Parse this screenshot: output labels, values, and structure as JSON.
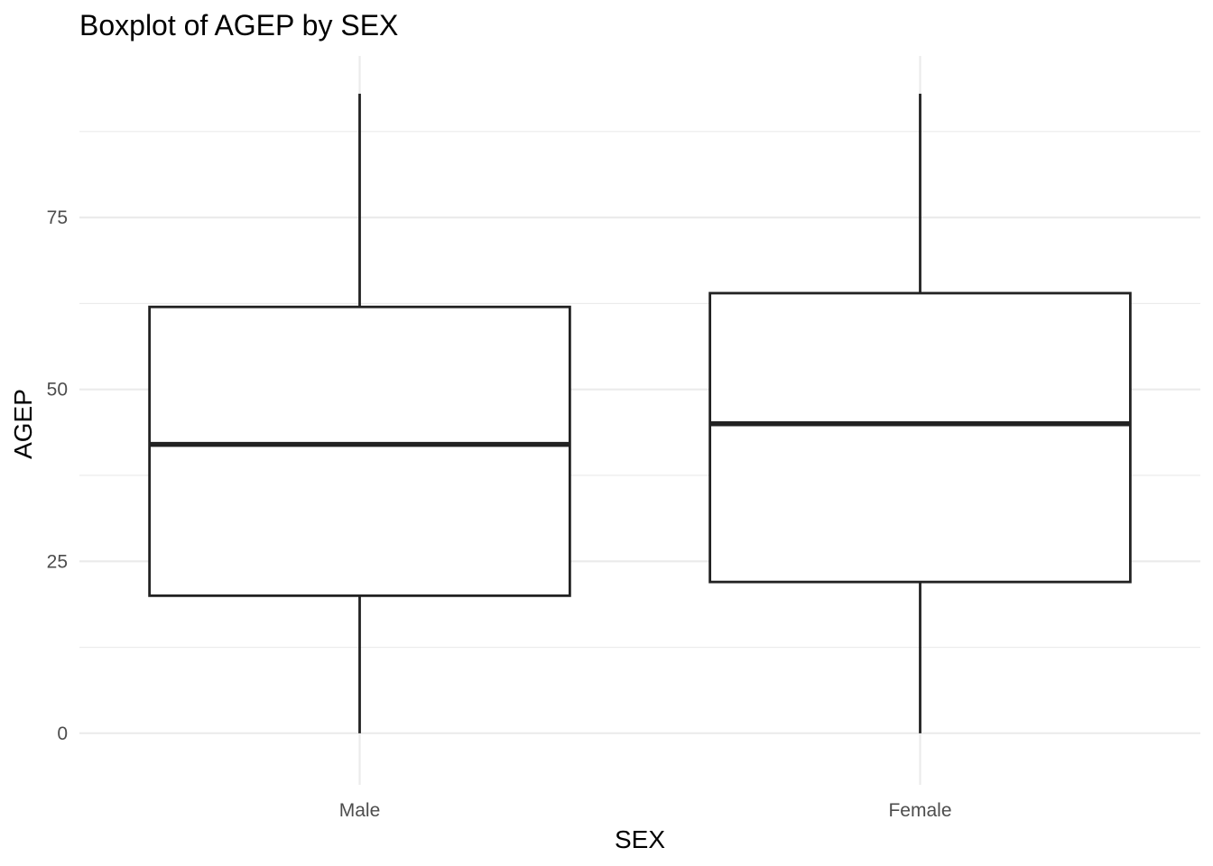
{
  "chart_data": {
    "type": "boxplot",
    "title": "Boxplot of AGEP by SEX",
    "xlabel": "SEX",
    "ylabel": "AGEP",
    "categories": [
      "Male",
      "Female"
    ],
    "boxes": [
      {
        "category": "Male",
        "min": 0,
        "q1": 20,
        "median": 42,
        "q3": 62,
        "max": 93
      },
      {
        "category": "Female",
        "min": 0,
        "q1": 22,
        "median": 45,
        "q3": 64,
        "max": 93
      }
    ],
    "ylim": [
      -7.5,
      98.5
    ],
    "yticks": [
      0,
      25,
      50,
      75
    ],
    "yminor": [
      12.5,
      37.5,
      62.5,
      87.5
    ],
    "ytick_labels": [
      "0",
      "25",
      "50",
      "75"
    ],
    "grid": true,
    "legend": "none"
  }
}
